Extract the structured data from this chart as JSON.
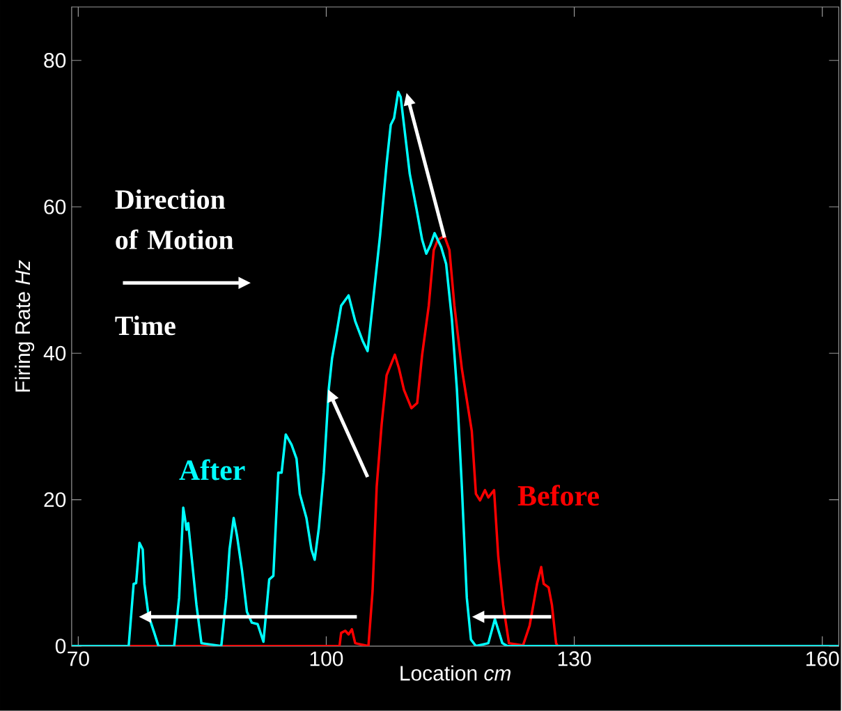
{
  "chart_data": {
    "type": "line",
    "xlabel": "Location *cm*",
    "ylabel": "Firing Rate  *Hz*",
    "annotations": [
      "Direction of Motion",
      "Time"
    ],
    "xlim": [
      69.2,
      162
    ],
    "ylim": [
      0,
      87.3
    ],
    "xticks": [
      70,
      100,
      130,
      160
    ],
    "yticks": [
      0,
      20,
      40,
      60,
      80
    ],
    "grid": false,
    "line_style": "solid",
    "series": [
      {
        "name": "Before",
        "color": "#ff0000",
        "x": [
          69.2,
          101.6,
          101.8,
          102.3,
          102.7,
          103.1,
          103.5,
          105.1,
          105.6,
          106.1,
          106.7,
          107.3,
          107.8,
          108.3,
          108.8,
          109.4,
          110.3,
          111.0,
          111.6,
          112.4,
          113.0,
          113.5,
          114.3,
          114.9,
          115.5,
          116.4,
          117.6,
          118.1,
          118.6,
          119.2,
          119.6,
          120.3,
          120.8,
          121.4,
          122.1,
          123.8,
          124.6,
          125.5,
          126.0,
          126.3,
          126.9,
          127.3,
          127.8,
          128.0,
          162
        ],
        "values": [
          0,
          0,
          1.8,
          2.1,
          1.6,
          2.3,
          0.4,
          0,
          7.5,
          21.8,
          30.3,
          37.0,
          38.4,
          39.8,
          37.9,
          35.0,
          32.5,
          33.2,
          39.8,
          46.5,
          54.1,
          55.5,
          56.0,
          54.1,
          46.5,
          37.9,
          29.4,
          20.8,
          19.9,
          21.3,
          20.3,
          21.3,
          12.3,
          5.6,
          0.4,
          0.1,
          2.8,
          8.5,
          10.8,
          8.5,
          8.0,
          5.6,
          0.4,
          0,
          0
        ]
      },
      {
        "name": "After",
        "color": "#00ffff",
        "x": [
          69.2,
          76.1,
          76.7,
          77.0,
          77.4,
          77.8,
          78.0,
          78.5,
          79.2,
          79.7,
          81.6,
          82.2,
          82.7,
          82.9,
          83.1,
          83.3,
          83.7,
          84.3,
          84.9,
          87.3,
          87.9,
          88.3,
          88.8,
          89.2,
          89.8,
          90.4,
          91.0,
          91.7,
          92.4,
          93.1,
          93.6,
          94.2,
          94.6,
          95.1,
          95.8,
          96.4,
          96.8,
          97.6,
          98.2,
          98.6,
          99.1,
          99.7,
          100.3,
          100.7,
          101.3,
          101.8,
          102.7,
          103.5,
          104.4,
          105.0,
          105.6,
          106.5,
          107.3,
          107.8,
          108.2,
          108.7,
          109.0,
          109.4,
          110.1,
          110.9,
          111.6,
          112.1,
          112.6,
          113.1,
          113.9,
          114.5,
          115.2,
          115.8,
          116.4,
          117.0,
          117.5,
          118.1,
          119.6,
          120.4,
          121.3,
          121.9,
          162
        ],
        "values": [
          0,
          0,
          8.5,
          8.6,
          14.1,
          13.2,
          8.5,
          4.2,
          1.8,
          0,
          0,
          6.6,
          18.9,
          17.5,
          15.9,
          16.8,
          12.3,
          5.6,
          0.4,
          0,
          6.6,
          13.2,
          17.5,
          15.1,
          10.4,
          4.7,
          3.2,
          3.0,
          0.6,
          9.1,
          9.6,
          23.7,
          23.7,
          28.9,
          27.5,
          25.6,
          20.8,
          17.5,
          13.2,
          11.8,
          16.1,
          23.7,
          35.1,
          39.3,
          43.1,
          46.5,
          47.9,
          44.4,
          41.7,
          40.3,
          46.5,
          56.0,
          65.9,
          71.2,
          72.1,
          75.7,
          75.0,
          71.2,
          64.5,
          59.8,
          55.5,
          53.6,
          54.8,
          56.4,
          54.5,
          52.2,
          44.6,
          35.1,
          21.8,
          6.6,
          0.9,
          0,
          0.4,
          3.7,
          0.4,
          0,
          0
        ]
      }
    ]
  }
}
